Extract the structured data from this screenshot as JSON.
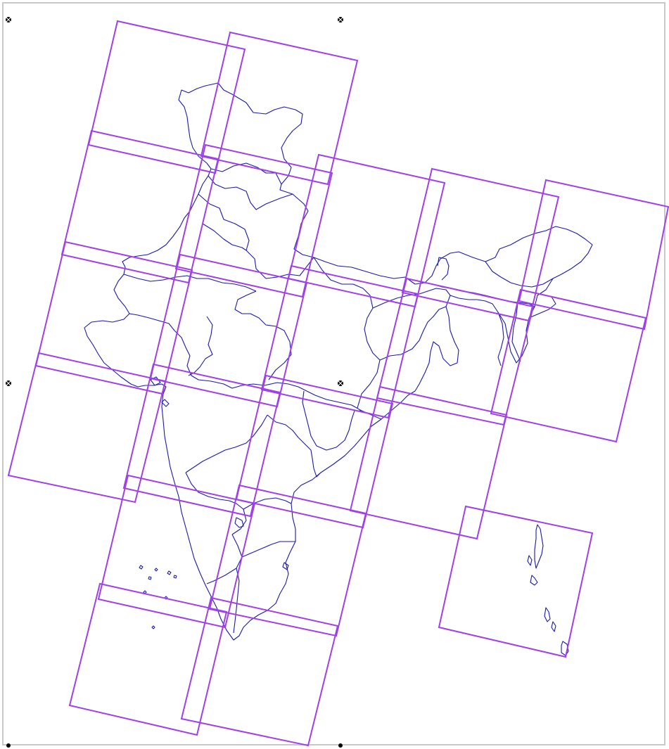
{
  "map": {
    "layers": [
      "state-boundaries",
      "footprint-tiles",
      "selection-handles"
    ],
    "boundary_color": "#1a1aa8",
    "footprint_color": "#a040e8",
    "handle_color": "#000000",
    "background_color": "#ffffff",
    "frame_color": "#c8c8c8",
    "footprint_tile_count": 15,
    "selection_handle_count": 6
  }
}
